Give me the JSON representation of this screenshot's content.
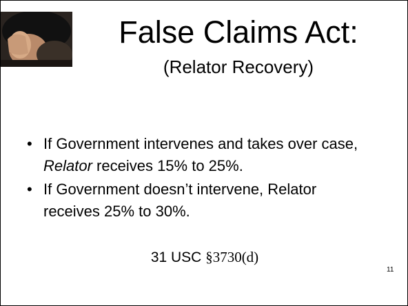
{
  "slide": {
    "title": "False Claims Act:",
    "subtitle": "(Relator Recovery)",
    "bullets": [
      [
        "If Government intervenes and takes over case, ",
        "Relator",
        " receives 15% to 25%."
      ],
      [
        "If Government doesn’t intervene, Relator receives 25% to 30%."
      ]
    ],
    "citation": [
      "31 USC ",
      "§3730(d)"
    ],
    "page_number": "11"
  }
}
